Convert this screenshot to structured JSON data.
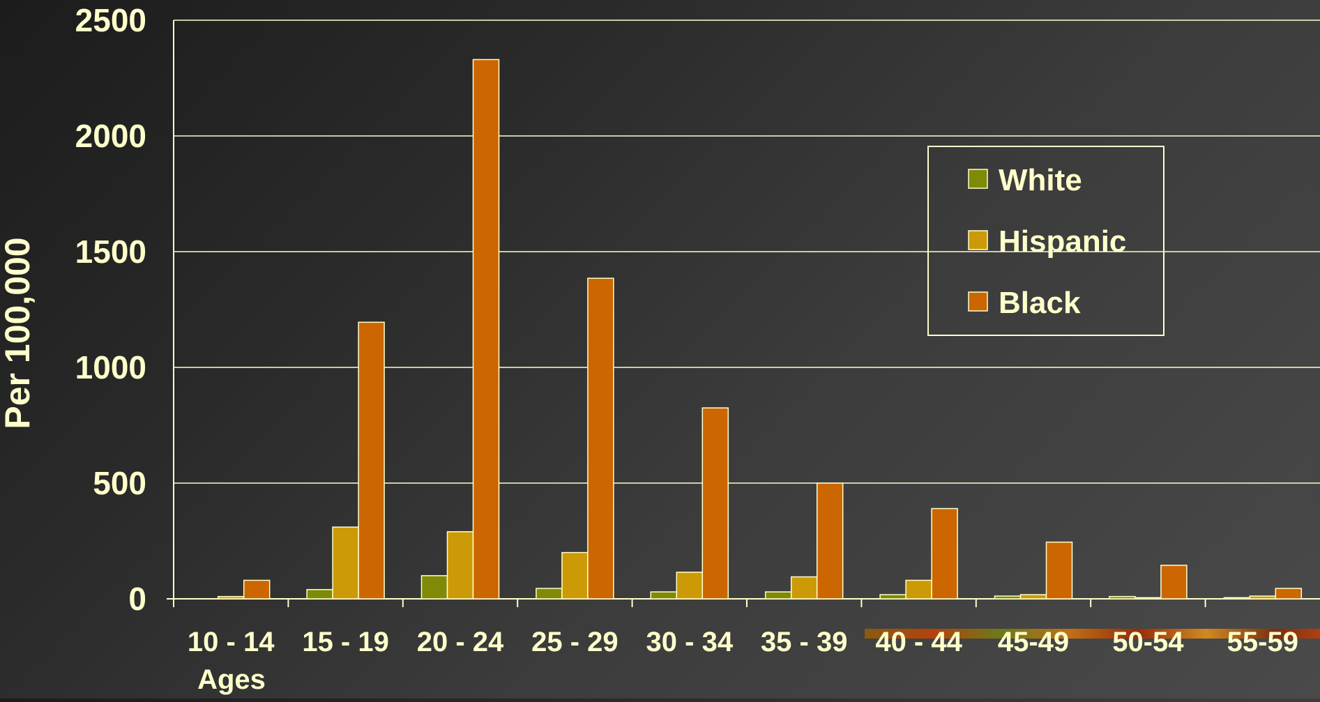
{
  "chart_data": {
    "type": "bar",
    "title": "",
    "xlabel": "Ages",
    "ylabel": "Per 100,000",
    "ylim": [
      0,
      2500
    ],
    "yticks": [
      0,
      500,
      1000,
      1500,
      2000,
      2500
    ],
    "grid": true,
    "legend_position": "top-right",
    "categories": [
      "10 - 14",
      "15 - 19",
      "20 - 24",
      "25 - 29",
      "30 - 34",
      "35 - 39",
      "40 - 44",
      "45-49",
      "50-54",
      "55-59"
    ],
    "series": [
      {
        "name": "White",
        "color": "#7f8a06",
        "values": [
          0,
          40,
          100,
          45,
          30,
          30,
          18,
          12,
          10,
          5
        ]
      },
      {
        "name": "Hispanic",
        "color": "#cc9a06",
        "values": [
          10,
          310,
          290,
          200,
          115,
          95,
          80,
          18,
          5,
          12
        ]
      },
      {
        "name": "Black",
        "color": "#cc6600",
        "values": [
          80,
          1195,
          2330,
          1385,
          825,
          500,
          390,
          245,
          145,
          45
        ]
      }
    ]
  },
  "colors": {
    "text": "#ffffcc",
    "grid": "#ffffcc",
    "bar_stroke": "#ffffcc"
  }
}
